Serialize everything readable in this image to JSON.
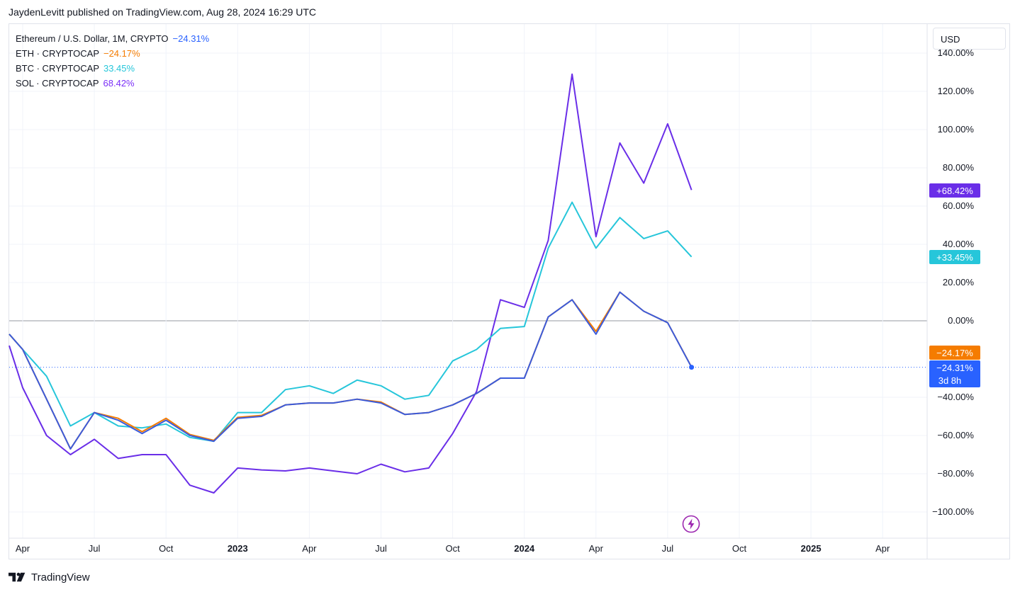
{
  "header": {
    "publisher": "JaydenLevitt published on TradingView.com, Aug 28, 2024 16:29 UTC"
  },
  "legend": [
    {
      "name": "Ethereum / U.S. Dollar, 1M, CRYPTO",
      "value": "−24.31%",
      "color": "#2962ff"
    },
    {
      "name": "ETH · CRYPTOCAP",
      "value": "−24.17%",
      "color": "#f57c00"
    },
    {
      "name": "BTC · CRYPTOCAP",
      "value": "33.45%",
      "color": "#26c6da"
    },
    {
      "name": "SOL · CRYPTOCAP",
      "value": "68.42%",
      "color": "#7b2ff7"
    }
  ],
  "currency_button": {
    "label": "USD"
  },
  "footer": {
    "brand": "TradingView"
  },
  "lightning_icon": "lightning-bolt-icon",
  "chart_data": {
    "type": "line",
    "x": [
      "2022-03",
      "2022-04",
      "2022-05",
      "2022-06",
      "2022-07",
      "2022-08",
      "2022-09",
      "2022-10",
      "2022-11",
      "2022-12",
      "2023-01",
      "2023-02",
      "2023-03",
      "2023-04",
      "2023-05",
      "2023-06",
      "2023-07",
      "2023-08",
      "2023-09",
      "2023-10",
      "2023-11",
      "2023-12",
      "2024-01",
      "2024-02",
      "2024-03",
      "2024-04",
      "2024-05",
      "2024-06",
      "2024-07",
      "2024-08"
    ],
    "series": [
      {
        "name": "Ethereum / U.S. Dollar, 1M, CRYPTO",
        "color": "#3b5bdb",
        "values": [
          -7,
          -15,
          -41,
          -67,
          -48,
          -52,
          -59,
          -52,
          -60,
          -63,
          -51,
          -50,
          -44,
          -43,
          -43,
          -41,
          -43,
          -49,
          -48,
          -44,
          -38,
          -30,
          -30,
          2,
          11,
          -7,
          15,
          5,
          -1,
          -24.31
        ]
      },
      {
        "name": "ETH · CRYPTOCAP",
        "color": "#f57c00",
        "values": [
          -7,
          -15,
          -41,
          -67,
          -48,
          -51,
          -58,
          -51,
          -59.5,
          -62.5,
          -50.5,
          -49.5,
          -44,
          -43,
          -43,
          -41,
          -42.5,
          -49,
          -48,
          -44,
          -38,
          -30,
          -30,
          2,
          11,
          -5.5,
          15,
          5,
          -1,
          -24.17
        ]
      },
      {
        "name": "BTC · CRYPTOCAP",
        "color": "#26c6da",
        "values": [
          -7,
          -15,
          -29,
          -55,
          -48,
          -55,
          -56,
          -54,
          -61,
          -63,
          -48,
          -48,
          -36,
          -34,
          -38,
          -31,
          -34,
          -41,
          -39,
          -21,
          -15,
          -4,
          -3,
          38,
          62,
          38,
          54,
          43,
          47,
          33.45
        ]
      },
      {
        "name": "SOL · CRYPTOCAP",
        "color": "#6a2ee8",
        "values": [
          -13,
          -35,
          -60,
          -70,
          -62,
          -72,
          -70,
          -70,
          -86,
          -90,
          -77,
          -78,
          -78.5,
          -77,
          -78.5,
          -80,
          -75,
          -79,
          -77,
          -59,
          -37,
          11,
          7,
          42,
          129,
          44,
          93,
          72,
          103,
          68.42
        ]
      }
    ],
    "y_ticks": [
      "140.00%",
      "120.00%",
      "100.00%",
      "80.00%",
      "60.00%",
      "40.00%",
      "20.00%",
      "0.00%",
      "−40.00%",
      "−60.00%",
      "−80.00%",
      "−100.00%"
    ],
    "y_tick_values": [
      140,
      120,
      100,
      80,
      60,
      40,
      20,
      0,
      -40,
      -60,
      -80,
      -100
    ],
    "x_ticks": [
      {
        "label": "Apr",
        "x": "2022-04",
        "bold": false
      },
      {
        "label": "Jul",
        "x": "2022-07",
        "bold": false
      },
      {
        "label": "Oct",
        "x": "2022-10",
        "bold": false
      },
      {
        "label": "2023",
        "x": "2023-01",
        "bold": true
      },
      {
        "label": "Apr",
        "x": "2023-04",
        "bold": false
      },
      {
        "label": "Jul",
        "x": "2023-07",
        "bold": false
      },
      {
        "label": "Oct",
        "x": "2023-10",
        "bold": false
      },
      {
        "label": "2024",
        "x": "2024-01",
        "bold": true
      },
      {
        "label": "Apr",
        "x": "2024-04",
        "bold": false
      },
      {
        "label": "Jul",
        "x": "2024-07",
        "bold": false
      },
      {
        "label": "Oct",
        "x": "2024-10",
        "bold": false
      },
      {
        "label": "2025",
        "x": "2025-01",
        "bold": true
      },
      {
        "label": "Apr",
        "x": "2025-04",
        "bold": false
      }
    ],
    "price_labels": [
      {
        "text": "+68.42%",
        "value": 68.42,
        "color": "#6a2ee8"
      },
      {
        "text": "+33.45%",
        "value": 33.45,
        "color": "#26c6da"
      },
      {
        "text": "−24.17%",
        "value": -24.17,
        "color": "#f57c00"
      },
      {
        "text": "−24.31%",
        "sub": "3d 8h",
        "value": -24.31,
        "color": "#2962ff"
      }
    ],
    "ylim": [
      -110,
      145
    ],
    "grid": true,
    "legend_position": "top-left"
  }
}
